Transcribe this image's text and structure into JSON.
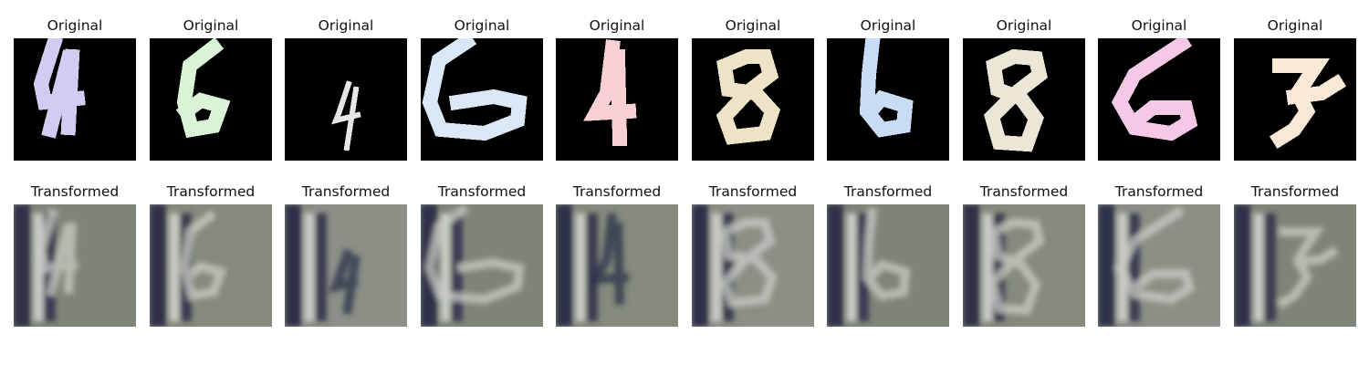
{
  "figure": {
    "original_title": "Original",
    "transformed_title": "Transformed",
    "panels": [
      {
        "digit": "4",
        "color": "#d4cbf3"
      },
      {
        "digit": "6",
        "color": "#d8f3d6"
      },
      {
        "digit": "4",
        "color": "#e6e6e6"
      },
      {
        "digit": "6",
        "color": "#d9e8f4"
      },
      {
        "digit": "4",
        "color": "#f8d0d4"
      },
      {
        "digit": "8",
        "color": "#efe3c7"
      },
      {
        "digit": "6",
        "color": "#c9dcf5"
      },
      {
        "digit": "8",
        "color": "#ebe6d6"
      },
      {
        "digit": "6",
        "color": "#f4c8e6"
      },
      {
        "digit": "7",
        "color": "#fce8d6"
      }
    ]
  }
}
